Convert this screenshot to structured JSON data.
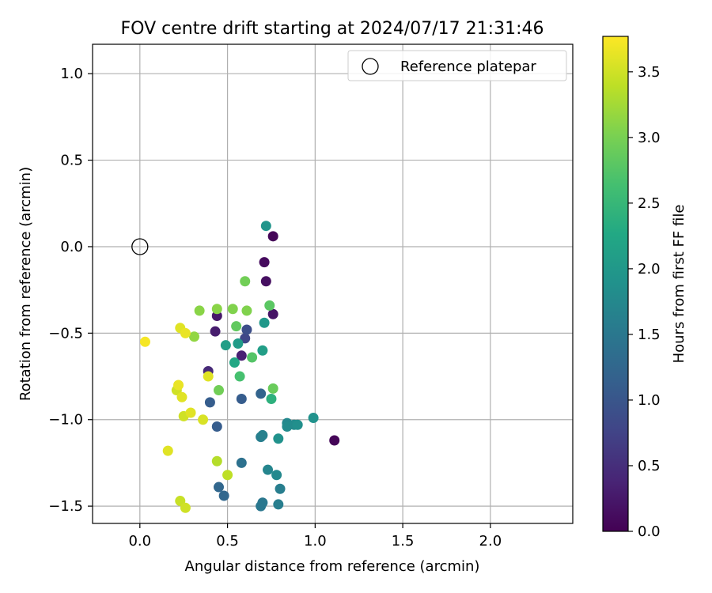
{
  "chart_data": {
    "type": "scatter",
    "title": "FOV centre drift starting at 2024/07/17 21:31:46",
    "xlabel": "Angular distance from reference (arcmin)",
    "ylabel": "Rotation from reference (arcmin)",
    "xlim": [
      -0.27,
      2.47
    ],
    "ylim": [
      -1.6,
      1.17
    ],
    "xticks": [
      0.0,
      0.5,
      1.0,
      1.5,
      2.0
    ],
    "xtick_labels": [
      "0.0",
      "0.5",
      "1.0",
      "1.5",
      "2.0"
    ],
    "yticks": [
      1.0,
      0.5,
      0.0,
      -0.5,
      -1.0,
      -1.5
    ],
    "ytick_labels": [
      "1.0",
      "0.5",
      "0.0",
      "−0.5",
      "−1.0",
      "−1.5"
    ],
    "grid": true,
    "legend": {
      "position": "upper right",
      "entries": [
        {
          "label": "Reference platepar",
          "marker": "open-circle",
          "color": "#000000"
        }
      ]
    },
    "reference_point": {
      "x": 0.0,
      "y": 0.0
    },
    "colorbar": {
      "label": "Hours from first FF file",
      "colormap": "viridis",
      "range": [
        0.0,
        3.77
      ],
      "ticks": [
        0.0,
        0.5,
        1.0,
        1.5,
        2.0,
        2.5,
        3.0,
        3.5
      ],
      "tick_labels": [
        "0.0",
        "0.5",
        "1.0",
        "1.5",
        "2.0",
        "2.5",
        "3.0",
        "3.5"
      ]
    },
    "points": [
      {
        "x": 1.11,
        "y": -1.12,
        "c": 0.05
      },
      {
        "x": 0.76,
        "y": 0.06,
        "c": 0.05
      },
      {
        "x": 0.71,
        "y": -0.09,
        "c": 0.1
      },
      {
        "x": 0.72,
        "y": -0.2,
        "c": 0.15
      },
      {
        "x": 0.76,
        "y": -0.39,
        "c": 0.2
      },
      {
        "x": 0.44,
        "y": -0.4,
        "c": 0.25
      },
      {
        "x": 0.43,
        "y": -0.49,
        "c": 0.3
      },
      {
        "x": 0.58,
        "y": -0.63,
        "c": 0.35
      },
      {
        "x": 0.39,
        "y": -0.72,
        "c": 0.45
      },
      {
        "x": 0.6,
        "y": -0.53,
        "c": 0.8
      },
      {
        "x": 0.61,
        "y": -0.48,
        "c": 0.9
      },
      {
        "x": 0.4,
        "y": -0.9,
        "c": 1.1
      },
      {
        "x": 0.58,
        "y": -0.88,
        "c": 1.1
      },
      {
        "x": 0.44,
        "y": -1.04,
        "c": 1.1
      },
      {
        "x": 0.69,
        "y": -0.85,
        "c": 1.2
      },
      {
        "x": 0.45,
        "y": -1.39,
        "c": 1.25
      },
      {
        "x": 0.48,
        "y": -1.44,
        "c": 1.25
      },
      {
        "x": 0.58,
        "y": -1.25,
        "c": 1.4
      },
      {
        "x": 0.7,
        "y": -1.48,
        "c": 1.5
      },
      {
        "x": 0.69,
        "y": -1.5,
        "c": 1.5
      },
      {
        "x": 0.69,
        "y": -1.1,
        "c": 1.6
      },
      {
        "x": 0.7,
        "y": -1.09,
        "c": 1.65
      },
      {
        "x": 0.8,
        "y": -1.4,
        "c": 1.6
      },
      {
        "x": 0.79,
        "y": -1.49,
        "c": 1.6
      },
      {
        "x": 0.73,
        "y": -1.29,
        "c": 1.7
      },
      {
        "x": 0.78,
        "y": -1.32,
        "c": 1.75
      },
      {
        "x": 0.84,
        "y": -1.02,
        "c": 1.75
      },
      {
        "x": 0.84,
        "y": -1.04,
        "c": 1.8
      },
      {
        "x": 0.88,
        "y": -1.03,
        "c": 1.8
      },
      {
        "x": 0.9,
        "y": -1.03,
        "c": 1.85
      },
      {
        "x": 0.99,
        "y": -0.99,
        "c": 1.9
      },
      {
        "x": 0.79,
        "y": -1.11,
        "c": 1.9
      },
      {
        "x": 0.72,
        "y": 0.12,
        "c": 1.95
      },
      {
        "x": 0.71,
        "y": -0.44,
        "c": 2.0
      },
      {
        "x": 0.7,
        "y": -0.6,
        "c": 2.1
      },
      {
        "x": 0.56,
        "y": -0.56,
        "c": 2.05
      },
      {
        "x": 0.49,
        "y": -0.57,
        "c": 2.1
      },
      {
        "x": 0.54,
        "y": -0.67,
        "c": 2.25
      },
      {
        "x": 0.75,
        "y": -0.88,
        "c": 2.4
      },
      {
        "x": 0.57,
        "y": -0.75,
        "c": 2.65
      },
      {
        "x": 0.64,
        "y": -0.64,
        "c": 2.75
      },
      {
        "x": 0.74,
        "y": -0.34,
        "c": 2.8
      },
      {
        "x": 0.55,
        "y": -0.46,
        "c": 2.85
      },
      {
        "x": 0.6,
        "y": -0.2,
        "c": 2.95
      },
      {
        "x": 0.76,
        "y": -0.82,
        "c": 2.9
      },
      {
        "x": 0.45,
        "y": -0.83,
        "c": 2.95
      },
      {
        "x": 0.61,
        "y": -0.37,
        "c": 3.05
      },
      {
        "x": 0.53,
        "y": -0.36,
        "c": 3.05
      },
      {
        "x": 0.44,
        "y": -0.36,
        "c": 3.1
      },
      {
        "x": 0.34,
        "y": -0.37,
        "c": 3.1
      },
      {
        "x": 0.31,
        "y": -0.52,
        "c": 3.15
      },
      {
        "x": 0.44,
        "y": -1.24,
        "c": 3.35
      },
      {
        "x": 0.5,
        "y": -1.32,
        "c": 3.4
      },
      {
        "x": 0.23,
        "y": -1.47,
        "c": 3.45
      },
      {
        "x": 0.26,
        "y": -1.51,
        "c": 3.5
      },
      {
        "x": 0.25,
        "y": -0.98,
        "c": 3.5
      },
      {
        "x": 0.36,
        "y": -1.0,
        "c": 3.55
      },
      {
        "x": 0.29,
        "y": -0.96,
        "c": 3.6
      },
      {
        "x": 0.21,
        "y": -0.83,
        "c": 3.5
      },
      {
        "x": 0.24,
        "y": -0.87,
        "c": 3.6
      },
      {
        "x": 0.22,
        "y": -0.8,
        "c": 3.65
      },
      {
        "x": 0.39,
        "y": -0.75,
        "c": 3.6
      },
      {
        "x": 0.23,
        "y": -0.47,
        "c": 3.6
      },
      {
        "x": 0.26,
        "y": -0.5,
        "c": 3.65
      },
      {
        "x": 0.03,
        "y": -0.55,
        "c": 3.72
      },
      {
        "x": 0.16,
        "y": -1.18,
        "c": 3.6
      }
    ]
  }
}
